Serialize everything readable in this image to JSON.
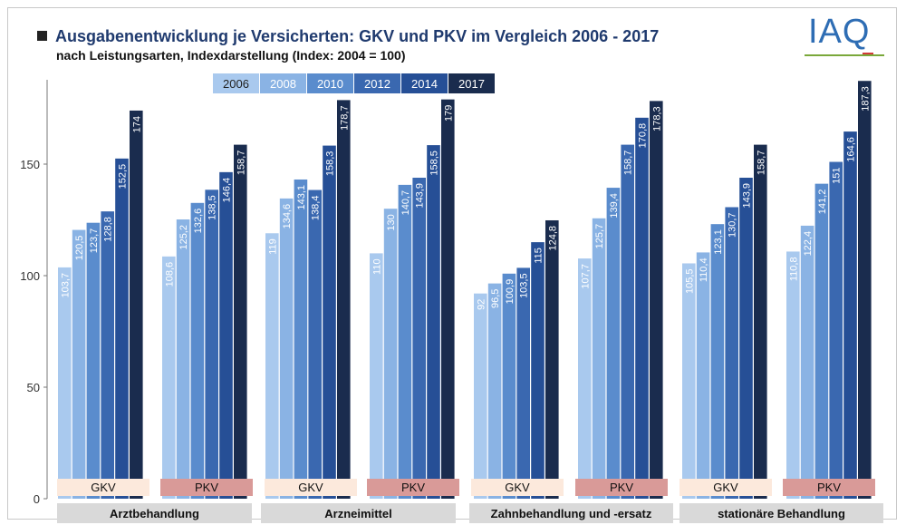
{
  "header": {
    "title": "Ausgabenentwicklung je Versicherten: GKV und PKV im Vergleich 2006 - 2017",
    "subtitle": "nach Leistungsarten, Indexdarstellung (Index: 2004 = 100)",
    "logo_text": "IAQ"
  },
  "colors": {
    "series": [
      "#a9c9ee",
      "#8ab3e4",
      "#5a8ccd",
      "#3a68b0",
      "#264f96",
      "#1a2c4e"
    ],
    "legend_text": [
      "#222222",
      "#ffffff",
      "#ffffff",
      "#ffffff",
      "#ffffff",
      "#ffffff"
    ],
    "gkv_label_bg": "#fce9dc",
    "pkv_label_bg": "#d99a98",
    "category_label_bg": "#d9d9d9"
  },
  "chart_data": {
    "type": "bar",
    "title": "Ausgabenentwicklung je Versicherten: GKV und PKV im Vergleich 2006 - 2017",
    "ylim": [
      0,
      190
    ],
    "yticks": [
      0,
      50,
      100,
      150
    ],
    "legend_position": "top-center",
    "series_names": [
      "2006",
      "2008",
      "2010",
      "2012",
      "2014",
      "2017"
    ],
    "groups": [
      {
        "category": "Arztbehandlung",
        "insurer": "GKV",
        "values": [
          103.7,
          120.5,
          123.7,
          128.8,
          152.5,
          174
        ],
        "labels": [
          "103,7",
          "120,5",
          "123,7",
          "128,8",
          "152,5",
          "174"
        ]
      },
      {
        "category": "Arztbehandlung",
        "insurer": "PKV",
        "values": [
          108.6,
          125.2,
          132.6,
          138.5,
          146.4,
          158.7
        ],
        "labels": [
          "108,6",
          "125,2",
          "132,6",
          "138,5",
          "146,4",
          "158,7"
        ]
      },
      {
        "category": "Arzneimittel",
        "insurer": "GKV",
        "values": [
          119,
          134.6,
          143.1,
          138.4,
          158.3,
          178.7
        ],
        "labels": [
          "119",
          "134,6",
          "143,1",
          "138,4",
          "158,3",
          "178,7"
        ]
      },
      {
        "category": "Arzneimittel",
        "insurer": "PKV",
        "values": [
          110,
          130,
          140.7,
          143.9,
          158.5,
          179
        ],
        "labels": [
          "110",
          "130",
          "140,7",
          "143,9",
          "158,5",
          "179"
        ]
      },
      {
        "category": "Zahnbehandlung und -ersatz",
        "insurer": "GKV",
        "values": [
          92,
          96.5,
          100.9,
          103.5,
          115,
          124.8
        ],
        "labels": [
          "92",
          "96,5",
          "100,9",
          "103,5",
          "115",
          "124,8"
        ]
      },
      {
        "category": "Zahnbehandlung und -ersatz",
        "insurer": "PKV",
        "values": [
          107.7,
          125.7,
          139.4,
          158.7,
          170.8,
          178.3
        ],
        "labels": [
          "107,7",
          "125,7",
          "139,4",
          "158,7",
          "170,8",
          "178,3"
        ]
      },
      {
        "category": "stationäre Behandlung",
        "insurer": "GKV",
        "values": [
          105.5,
          110.4,
          123.1,
          130.7,
          143.9,
          158.7
        ],
        "labels": [
          "105,5",
          "110,4",
          "123,1",
          "130,7",
          "143,9",
          "158,7"
        ]
      },
      {
        "category": "stationäre Behandlung",
        "insurer": "PKV",
        "values": [
          110.8,
          122.4,
          141.2,
          151,
          164.6,
          187.3
        ],
        "labels": [
          "110,8",
          "122,4",
          "141,2",
          "151",
          "164,6",
          "187,3"
        ]
      }
    ],
    "categories": [
      "Arztbehandlung",
      "Arzneimittel",
      "Zahnbehandlung und -ersatz",
      "stationäre Behandlung"
    ]
  }
}
